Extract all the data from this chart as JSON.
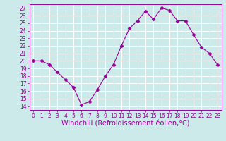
{
  "x": [
    0,
    1,
    2,
    3,
    4,
    5,
    6,
    7,
    8,
    9,
    10,
    11,
    12,
    13,
    14,
    15,
    16,
    17,
    18,
    19,
    20,
    21,
    22,
    23
  ],
  "y": [
    20.0,
    20.0,
    19.5,
    18.5,
    17.5,
    16.5,
    14.2,
    14.6,
    16.2,
    18.0,
    19.5,
    22.0,
    24.3,
    25.3,
    26.6,
    25.5,
    27.0,
    26.7,
    25.3,
    25.3,
    23.5,
    21.8,
    21.0,
    19.5
  ],
  "line_color": "#990099",
  "marker": "D",
  "marker_size": 2.5,
  "bg_color": "#cceaea",
  "grid_color": "#ffffff",
  "xlabel": "Windchill (Refroidissement éolien,°C)",
  "ylim": [
    13.5,
    27.5
  ],
  "xlim": [
    -0.5,
    23.5
  ],
  "yticks": [
    14,
    15,
    16,
    17,
    18,
    19,
    20,
    21,
    22,
    23,
    24,
    25,
    26,
    27
  ],
  "xticks": [
    0,
    1,
    2,
    3,
    4,
    5,
    6,
    7,
    8,
    9,
    10,
    11,
    12,
    13,
    14,
    15,
    16,
    17,
    18,
    19,
    20,
    21,
    22,
    23
  ],
  "tick_fontsize": 5.5,
  "xlabel_fontsize": 7.0,
  "tick_color": "#990099",
  "label_color": "#990099",
  "spine_color": "#990099"
}
